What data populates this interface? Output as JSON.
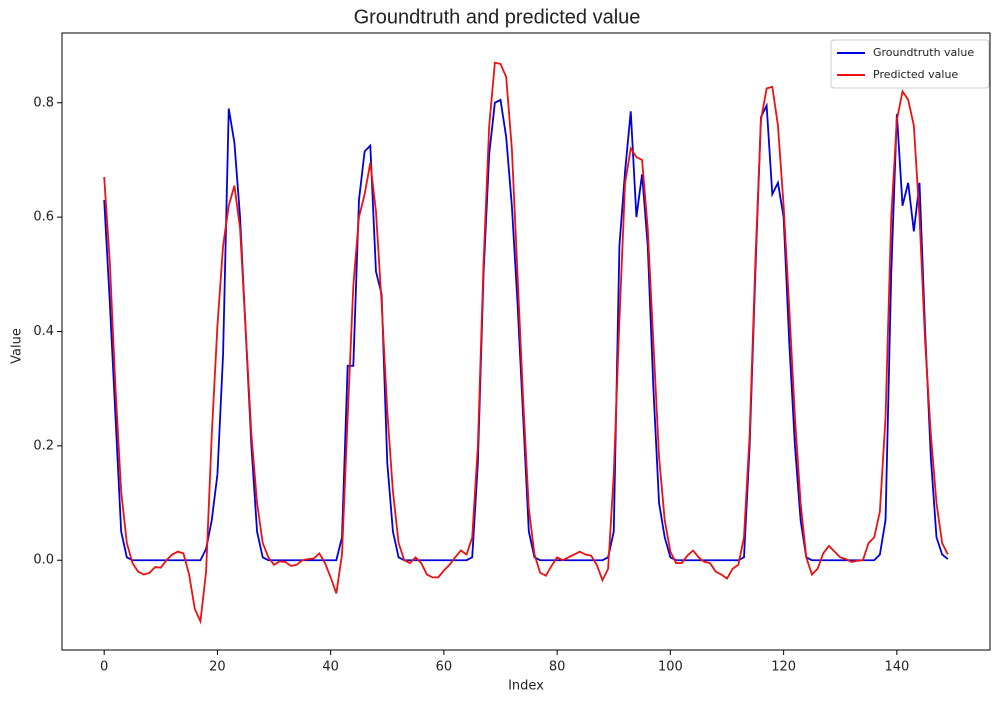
{
  "chart_data": {
    "type": "line",
    "title": "Groundtruth and predicted value",
    "xlabel": "Index",
    "ylabel": "Value",
    "x": [
      0,
      1,
      2,
      3,
      4,
      5,
      6,
      7,
      8,
      9,
      10,
      11,
      12,
      13,
      14,
      15,
      16,
      17,
      18,
      19,
      20,
      21,
      22,
      23,
      24,
      25,
      26,
      27,
      28,
      29,
      30,
      31,
      32,
      33,
      34,
      35,
      36,
      37,
      38,
      39,
      40,
      41,
      42,
      43,
      44,
      45,
      46,
      47,
      48,
      49,
      50,
      51,
      52,
      53,
      54,
      55,
      56,
      57,
      58,
      59,
      60,
      61,
      62,
      63,
      64,
      65,
      66,
      67,
      68,
      69,
      70,
      71,
      72,
      73,
      74,
      75,
      76,
      77,
      78,
      79,
      80,
      81,
      82,
      83,
      84,
      85,
      86,
      87,
      88,
      89,
      90,
      91,
      92,
      93,
      94,
      95,
      96,
      97,
      98,
      99,
      100,
      101,
      102,
      103,
      104,
      105,
      106,
      107,
      108,
      109,
      110,
      111,
      112,
      113,
      114,
      115,
      116,
      117,
      118,
      119,
      120,
      121,
      122,
      123,
      124,
      125,
      126,
      127,
      128,
      129,
      130,
      131,
      132,
      133,
      134,
      135,
      136,
      137,
      138,
      139,
      140,
      141,
      142,
      143,
      144,
      145,
      146,
      147,
      148,
      149
    ],
    "series": [
      {
        "name": "Groundtruth value",
        "color": "#0000dd",
        "values": [
          0.63,
          0.45,
          0.25,
          0.05,
          0.005,
          0,
          0,
          0,
          0,
          0,
          0,
          0,
          0,
          0,
          0,
          0,
          0,
          0,
          0.02,
          0.07,
          0.15,
          0.36,
          0.79,
          0.73,
          0.6,
          0.4,
          0.2,
          0.05,
          0.005,
          0,
          0,
          0,
          0,
          0,
          0,
          0,
          0,
          0,
          0,
          0,
          0,
          0,
          0.04,
          0.34,
          0.34,
          0.63,
          0.715,
          0.725,
          0.505,
          0.465,
          0.17,
          0.05,
          0.005,
          0,
          0,
          0,
          0,
          0,
          0,
          0,
          0,
          0,
          0,
          0,
          0,
          0.005,
          0.17,
          0.5,
          0.71,
          0.8,
          0.805,
          0.74,
          0.62,
          0.45,
          0.25,
          0.05,
          0.005,
          0,
          0,
          0,
          0,
          0,
          0,
          0,
          0,
          0,
          0,
          0,
          0,
          0.005,
          0.05,
          0.55,
          0.68,
          0.785,
          0.6,
          0.675,
          0.55,
          0.3,
          0.1,
          0.04,
          0.005,
          0,
          0,
          0,
          0,
          0,
          0,
          0,
          0,
          0,
          0,
          0,
          0,
          0.005,
          0.2,
          0.5,
          0.775,
          0.795,
          0.64,
          0.66,
          0.6,
          0.38,
          0.2,
          0.07,
          0.005,
          0,
          0,
          0,
          0,
          0,
          0,
          0,
          0,
          0,
          0,
          0,
          0,
          0.01,
          0.07,
          0.5,
          0.78,
          0.62,
          0.66,
          0.575,
          0.66,
          0.4,
          0.18,
          0.04,
          0.01,
          0.002
        ]
      },
      {
        "name": "Predicted value",
        "color": "#ee1111",
        "values": [
          0.67,
          0.52,
          0.3,
          0.12,
          0.03,
          -0.005,
          -0.02,
          -0.025,
          -0.022,
          -0.012,
          -0.013,
          0,
          0.01,
          0.015,
          0.012,
          -0.025,
          -0.085,
          -0.107,
          -0.02,
          0.22,
          0.41,
          0.55,
          0.62,
          0.655,
          0.58,
          0.4,
          0.22,
          0.1,
          0.03,
          0.005,
          -0.008,
          -0.002,
          -0.003,
          -0.01,
          -0.008,
          0,
          0.002,
          0.003,
          0.012,
          -0.005,
          -0.03,
          -0.058,
          0.01,
          0.25,
          0.48,
          0.6,
          0.64,
          0.695,
          0.61,
          0.45,
          0.26,
          0.12,
          0.03,
          0,
          -0.005,
          0.005,
          -0.005,
          -0.025,
          -0.03,
          -0.03,
          -0.018,
          -0.008,
          0.005,
          0.017,
          0.01,
          0.04,
          0.2,
          0.52,
          0.76,
          0.87,
          0.868,
          0.845,
          0.72,
          0.5,
          0.28,
          0.09,
          0.01,
          -0.022,
          -0.027,
          -0.01,
          0.005,
          0,
          0.005,
          0.01,
          0.015,
          0.01,
          0.008,
          -0.008,
          -0.035,
          -0.015,
          0.15,
          0.42,
          0.66,
          0.72,
          0.705,
          0.7,
          0.58,
          0.38,
          0.18,
          0.07,
          0.015,
          -0.005,
          -0.005,
          0.008,
          0.017,
          0.005,
          -0.003,
          -0.005,
          -0.02,
          -0.025,
          -0.032,
          -0.015,
          -0.008,
          0.04,
          0.22,
          0.52,
          0.77,
          0.825,
          0.828,
          0.76,
          0.62,
          0.44,
          0.25,
          0.1,
          0.005,
          -0.025,
          -0.015,
          0.012,
          0.025,
          0.015,
          0.005,
          0.002,
          -0.003,
          -0.001,
          0,
          0.03,
          0.04,
          0.085,
          0.25,
          0.6,
          0.77,
          0.82,
          0.805,
          0.76,
          0.6,
          0.38,
          0.22,
          0.1,
          0.03,
          0.01
        ]
      }
    ],
    "xlim": [
      -7.45,
      156.45
    ],
    "xticks": [
      0,
      20,
      40,
      60,
      80,
      100,
      120,
      140
    ],
    "ylim": [
      -0.157,
      0.922
    ],
    "yticks": [
      {
        "value": 0,
        "label": "0.0"
      },
      0.2,
      0.4,
      0.6,
      0.8
    ],
    "legend": "upper right",
    "grid": false
  }
}
